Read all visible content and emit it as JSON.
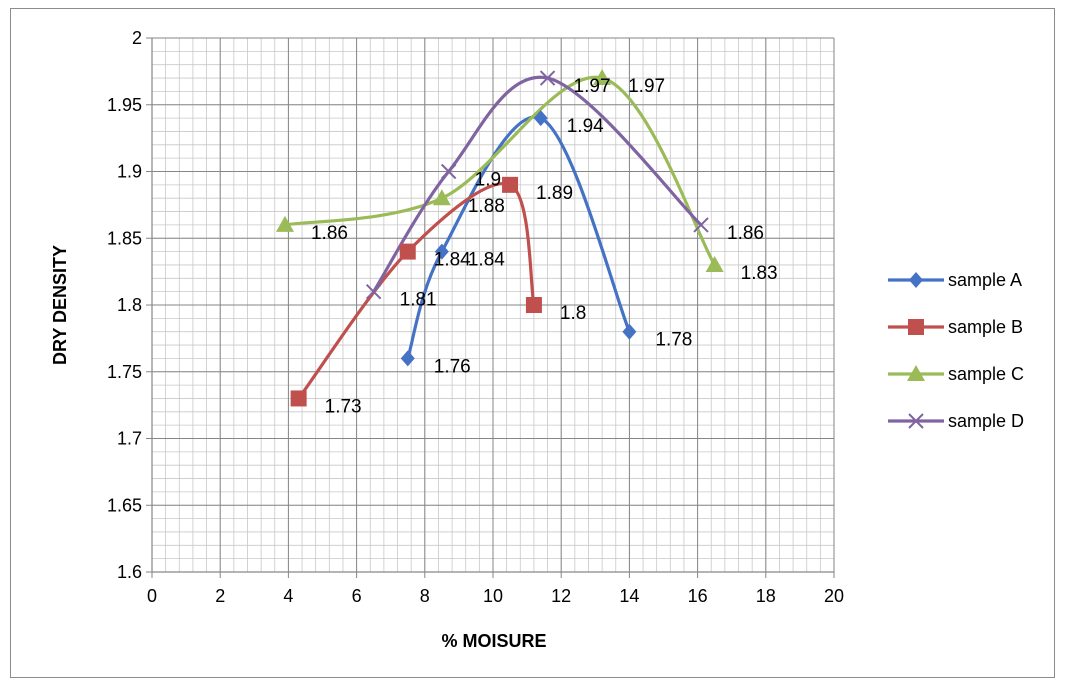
{
  "chart_data": {
    "type": "scatter",
    "title": "",
    "xlabel": "% MOISURE",
    "ylabel": "DRY DENSITY",
    "xlim": [
      0,
      20
    ],
    "ylim": [
      1.6,
      2.0
    ],
    "x_ticks": [
      "0",
      "2",
      "4",
      "6",
      "8",
      "10",
      "12",
      "14",
      "16",
      "18",
      "20"
    ],
    "y_ticks": [
      "1.6",
      "1.65",
      "1.7",
      "1.75",
      "1.8",
      "1.85",
      "1.9",
      "1.95",
      "2"
    ],
    "grid": true,
    "smooth_lines": true,
    "legend_position": "right",
    "series": [
      {
        "name": "sample A",
        "color": "#4472C4",
        "marker": "diamond",
        "x": [
          7.5,
          8.5,
          11.4,
          14.0
        ],
        "y": [
          1.76,
          1.84,
          1.94,
          1.78
        ],
        "labels": [
          "1.76",
          "1.84",
          "1.94",
          "1.78"
        ]
      },
      {
        "name": "sample B",
        "color": "#C0504D",
        "marker": "square",
        "x": [
          4.3,
          7.5,
          10.5,
          11.2
        ],
        "y": [
          1.73,
          1.84,
          1.89,
          1.8
        ],
        "labels": [
          "1.73",
          "1.84",
          "1.89",
          "1.8"
        ]
      },
      {
        "name": "sample C",
        "color": "#9BBB59",
        "marker": "triangle",
        "x": [
          3.9,
          8.5,
          13.2,
          16.5
        ],
        "y": [
          1.86,
          1.88,
          1.97,
          1.83
        ],
        "labels": [
          "1.86",
          "1.88",
          "1.97",
          "1.83"
        ]
      },
      {
        "name": "sample D",
        "color": "#8064A2",
        "marker": "x",
        "x": [
          6.5,
          8.7,
          11.6,
          16.1
        ],
        "y": [
          1.81,
          1.9,
          1.97,
          1.86
        ],
        "labels": [
          "1.81",
          "1.9",
          "1.97",
          "1.86"
        ]
      }
    ]
  }
}
